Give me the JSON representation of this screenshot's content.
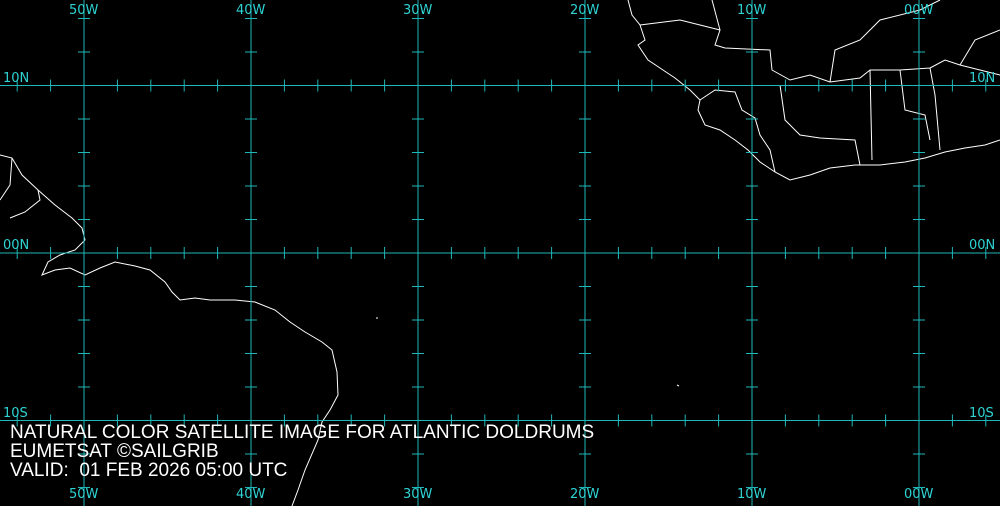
{
  "map": {
    "grid_color": "#1fb8b8",
    "coast_color": "#ffffff",
    "background": "#000000",
    "longitude_labels": [
      "50W",
      "40W",
      "30W",
      "20W",
      "10W",
      "00W"
    ],
    "longitudes": [
      -50,
      -40,
      -30,
      -20,
      -10,
      0
    ],
    "latitude_labels": [
      "10N",
      "00N",
      "10S"
    ],
    "latitudes": [
      10,
      0,
      -10
    ],
    "tick_interval_deg": 2
  },
  "caption": {
    "line1": "NATURAL COLOR SATELLITE IMAGE FOR ATLANTIC DOLDRUMS",
    "line2": "EUMETSAT ©SAILGRIB",
    "line3": "VALID:  01 FEB 2026 05:00 UTC"
  }
}
